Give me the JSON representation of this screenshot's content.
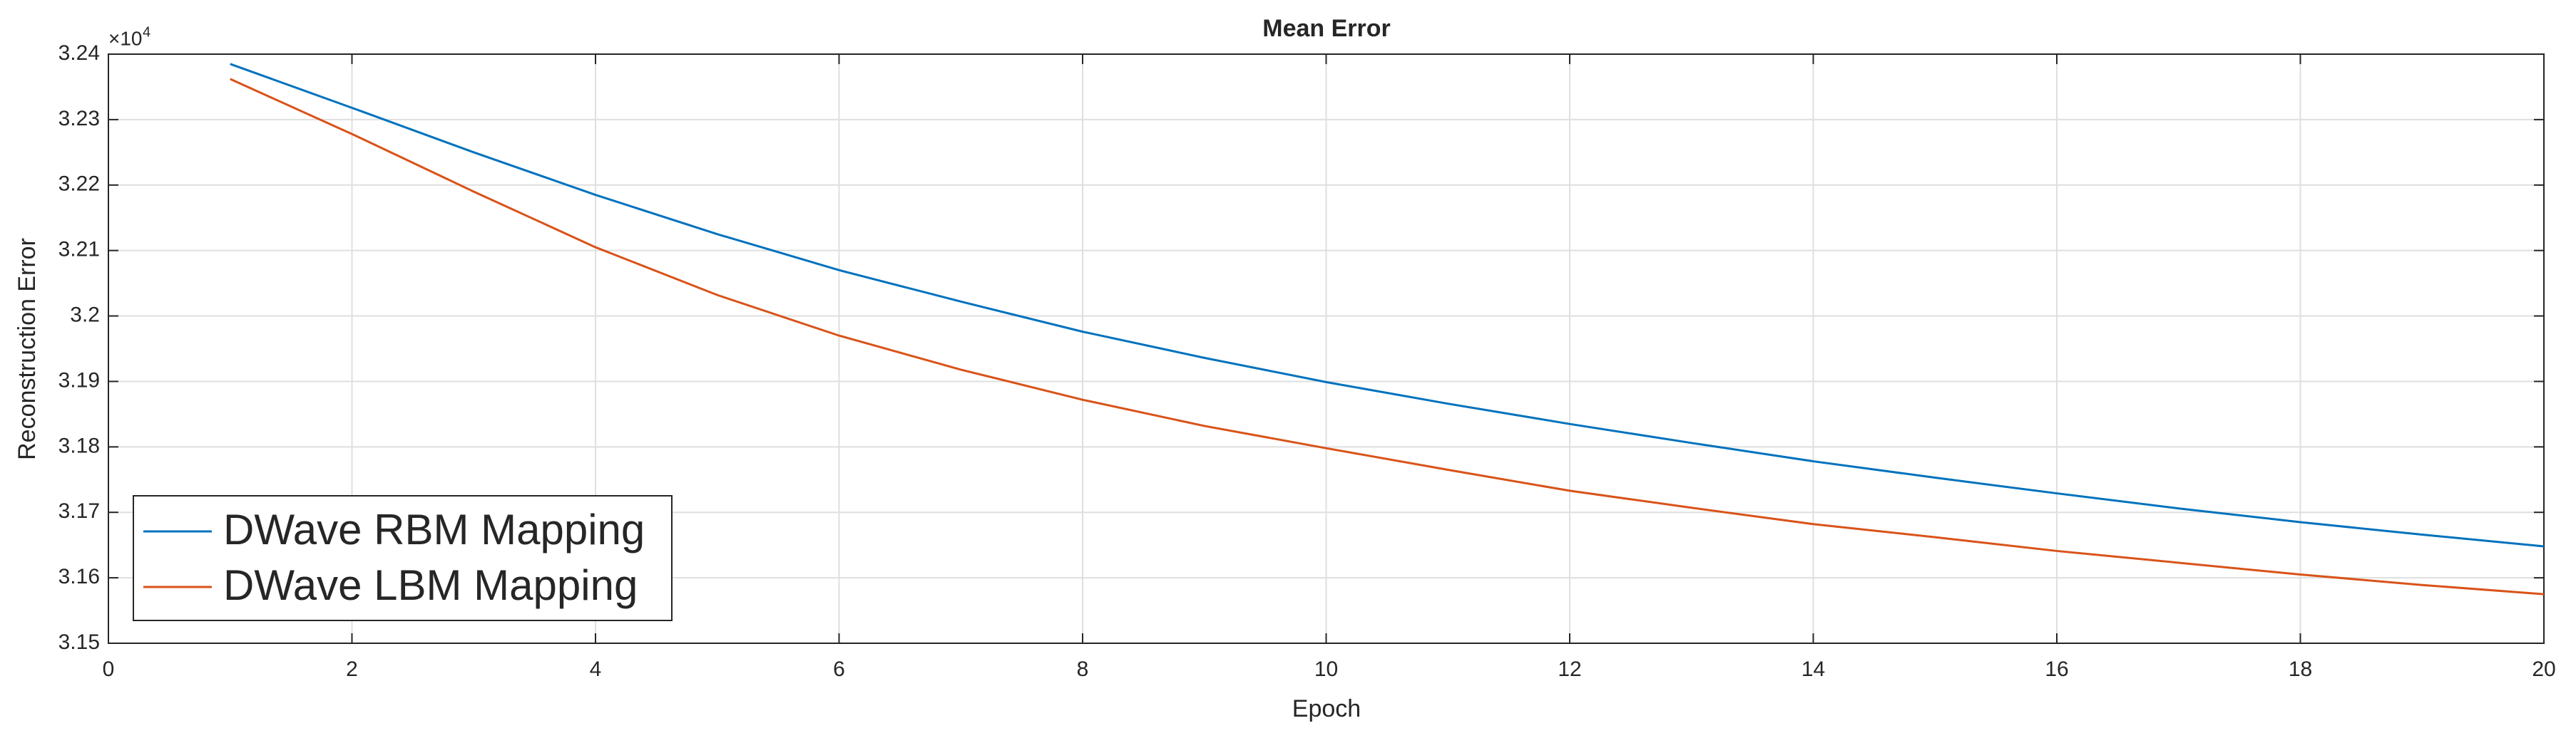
{
  "chart_data": {
    "type": "line",
    "title": "Mean Error",
    "x_label": "Epoch",
    "y_label": "Reconstruction Error",
    "y_scale_label": "×10",
    "y_scale_exponent": "4",
    "x": [
      1,
      2,
      3,
      4,
      5,
      6,
      7,
      8,
      9,
      10,
      11,
      12,
      13,
      14,
      15,
      16,
      17,
      18,
      19,
      20
    ],
    "series": [
      {
        "name": "DWave RBM Mapping",
        "color": "#0072bd",
        "values": [
          3.2385,
          3.2318,
          3.225,
          3.2185,
          3.2125,
          3.207,
          3.2022,
          3.1976,
          3.1936,
          3.1899,
          3.1866,
          3.1835,
          3.1806,
          3.1778,
          3.1753,
          3.1729,
          3.1706,
          3.1685,
          3.1666,
          3.1648
        ]
      },
      {
        "name": "DWave LBM Mapping",
        "color": "#d95319",
        "values": [
          3.2362,
          3.2278,
          3.219,
          3.2105,
          3.2032,
          3.197,
          3.1918,
          3.1872,
          3.1832,
          3.1798,
          3.1765,
          3.1733,
          3.1707,
          3.1682,
          3.1662,
          3.1641,
          3.1623,
          3.1605,
          3.1589,
          3.1575
        ]
      }
    ],
    "xlim": [
      0,
      20
    ],
    "xticks": [
      0,
      2,
      4,
      6,
      8,
      10,
      12,
      14,
      16,
      18,
      20
    ],
    "ylim": [
      3.15,
      3.24
    ],
    "yticks": [
      3.15,
      3.16,
      3.17,
      3.18,
      3.19,
      3.2,
      3.21,
      3.22,
      3.23,
      3.24
    ],
    "grid": true,
    "legend": "lower-left"
  }
}
